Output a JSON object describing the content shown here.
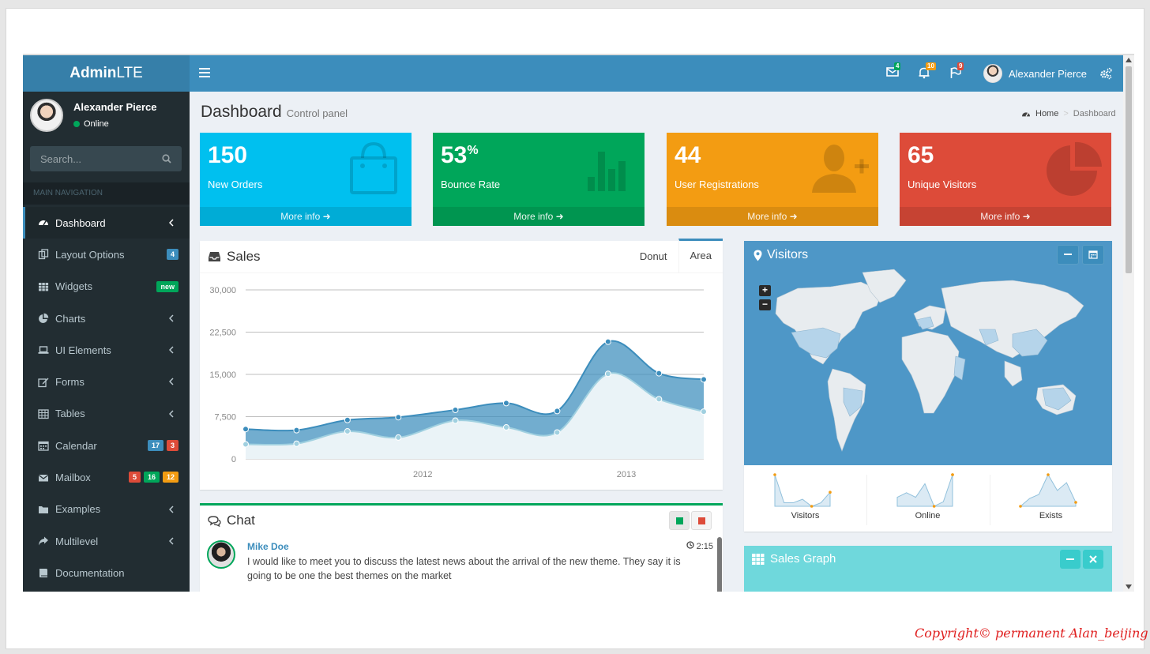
{
  "logo": {
    "bold": "Admin",
    "light": "LTE"
  },
  "navbar": {
    "user_name": "Alexander Pierce",
    "messages_count": "4",
    "notifications_count": "10",
    "tasks_count": "9",
    "colors": {
      "messages": "#00a65a",
      "notifications": "#f39c12",
      "tasks": "#dd4b39"
    }
  },
  "sidebar": {
    "user_name": "Alexander Pierce",
    "status": "Online",
    "search_placeholder": "Search...",
    "nav_header": "MAIN NAVIGATION",
    "items": [
      {
        "label": "Dashboard",
        "icon": "dashboard-icon",
        "active": true
      },
      {
        "label": "Layout Options",
        "icon": "files-icon",
        "badges": [
          "4"
        ]
      },
      {
        "label": "Widgets",
        "icon": "grid-icon",
        "badges": [
          "new"
        ]
      },
      {
        "label": "Charts",
        "icon": "pie-chart-icon"
      },
      {
        "label": "UI Elements",
        "icon": "laptop-icon"
      },
      {
        "label": "Forms",
        "icon": "edit-icon"
      },
      {
        "label": "Tables",
        "icon": "table-icon"
      },
      {
        "label": "Calendar",
        "icon": "calendar-icon",
        "badges": [
          "17",
          "3"
        ]
      },
      {
        "label": "Mailbox",
        "icon": "envelope-icon",
        "badges": [
          "5",
          "16",
          "12"
        ]
      },
      {
        "label": "Examples",
        "icon": "folder-icon"
      },
      {
        "label": "Multilevel",
        "icon": "share-icon"
      },
      {
        "label": "Documentation",
        "icon": "book-icon"
      }
    ]
  },
  "content_header": {
    "title": "Dashboard",
    "subtitle": "Control panel"
  },
  "breadcrumb": {
    "home": "Home",
    "current": "Dashboard"
  },
  "stat_boxes": [
    {
      "value": "150",
      "suffix": "",
      "label": "New Orders",
      "footer": "More info",
      "color": "#00c0ef",
      "icon": "shopping-bag-icon"
    },
    {
      "value": "53",
      "suffix": "%",
      "label": "Bounce Rate",
      "footer": "More info",
      "color": "#00a65a",
      "icon": "bar-chart-icon"
    },
    {
      "value": "44",
      "suffix": "",
      "label": "User Registrations",
      "footer": "More info",
      "color": "#f39c12",
      "icon": "user-plus-icon"
    },
    {
      "value": "65",
      "suffix": "",
      "label": "Unique Visitors",
      "footer": "More info",
      "color": "#dd4b39",
      "icon": "pie-chart-icon"
    }
  ],
  "sales": {
    "title": "Sales",
    "tabs": [
      "Donut",
      "Area"
    ],
    "active_tab": "Area"
  },
  "chart_data": {
    "type": "area",
    "title": "",
    "xlabel": "",
    "ylabel": "",
    "ylim": [
      0,
      30000
    ],
    "yticks": [
      "30,000",
      "22,500",
      "15,000",
      "7,500",
      "0"
    ],
    "xticks": [
      {
        "label": "2012",
        "x": 2012.0
      },
      {
        "label": "2013",
        "x": 2013.0
      }
    ],
    "x": [
      2011.13,
      2011.38,
      2011.63,
      2011.88,
      2012.16,
      2012.41,
      2012.66,
      2012.91,
      2013.16,
      2013.38
    ],
    "series": [
      {
        "name": "",
        "values": [
          5300,
          5100,
          6900,
          7400,
          8700,
          9900,
          8500,
          20800,
          15200,
          14100
        ],
        "color": "#3c8dbc"
      },
      {
        "name": "",
        "values": [
          2600,
          2700,
          4900,
          3800,
          6800,
          5600,
          4700,
          15100,
          10600,
          8400
        ],
        "color": "#a0d0e0"
      }
    ],
    "grid": true
  },
  "chat": {
    "title": "Chat",
    "messages": [
      {
        "author": "Mike Doe",
        "time": "2:15",
        "text": "I would like to meet you to discuss the latest news about the arrival of the new theme. They say it is going to be one the best themes on the market"
      }
    ]
  },
  "visitors": {
    "title": "Visitors",
    "sparklines": [
      {
        "label": "Visitors",
        "values": [
          1000,
          200,
          200,
          300,
          100,
          200,
          500
        ]
      },
      {
        "label": "Online",
        "values": [
          300,
          400,
          300,
          600,
          100,
          200,
          800
        ]
      },
      {
        "label": "Exists",
        "values": [
          100,
          300,
          400,
          900,
          500,
          700,
          200
        ]
      }
    ]
  },
  "sales_graph": {
    "title": "Sales Graph"
  },
  "copyright": "Copyright© permanent  Alan_beijing"
}
